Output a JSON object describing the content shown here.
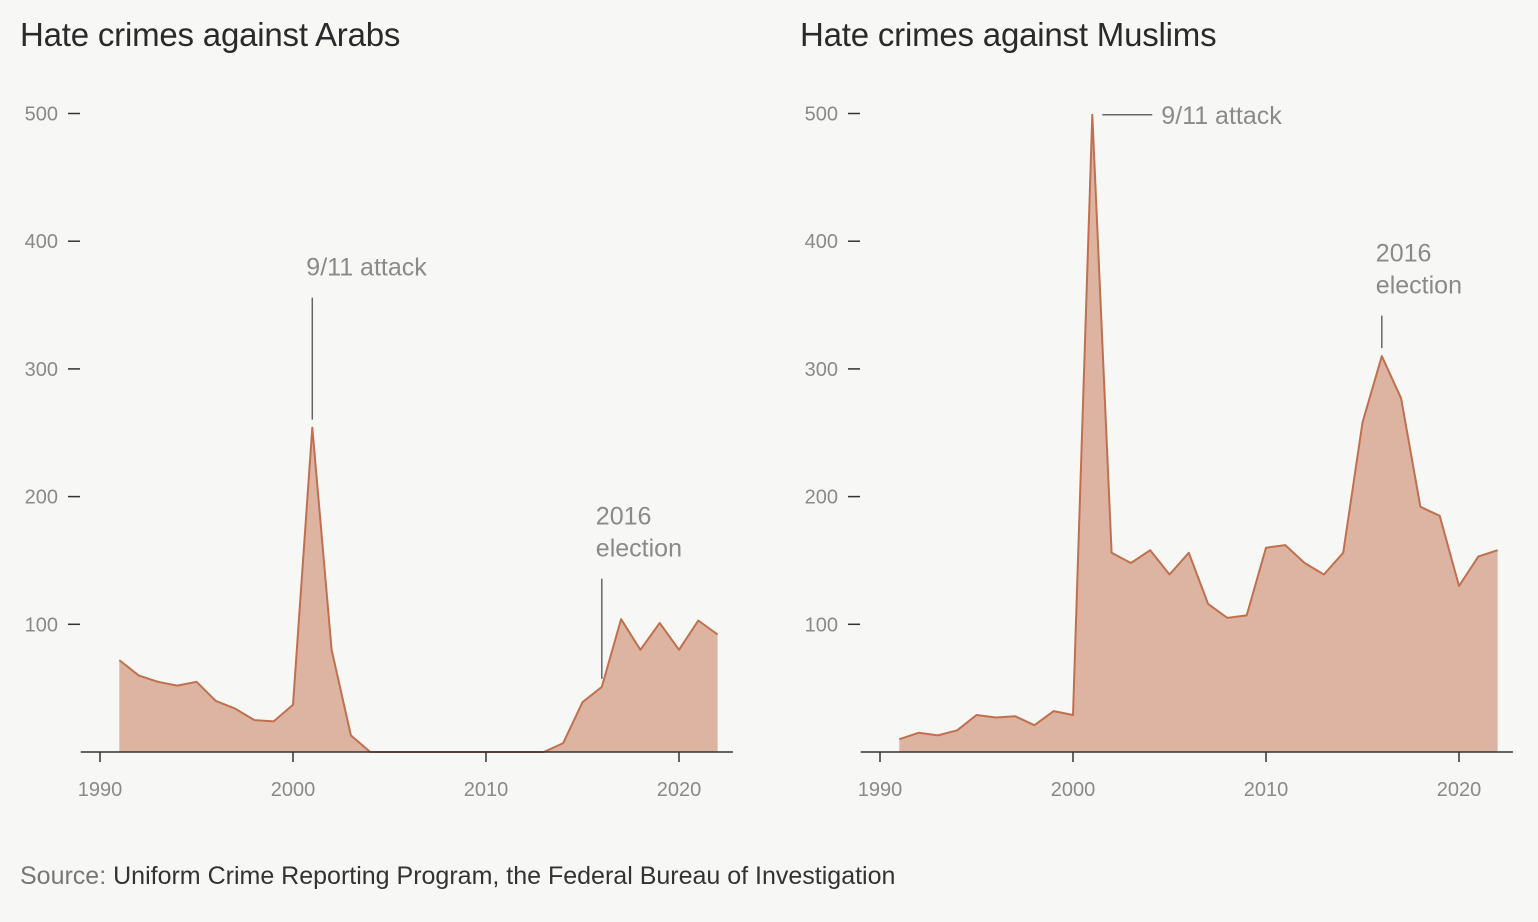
{
  "source": {
    "label": "Source:",
    "text": " Uniform Crime Reporting Program, the Federal Bureau of Investigation"
  },
  "colors": {
    "fill": "#ddb4a1",
    "stroke": "#c0704f",
    "axis": "#333333",
    "tick_text": "#8a8a8a"
  },
  "chart_data": [
    {
      "type": "area",
      "title": "Hate crimes against Arabs",
      "x": [
        1991,
        1992,
        1993,
        1994,
        1995,
        1996,
        1997,
        1998,
        1999,
        2000,
        2001,
        2002,
        2003,
        2004,
        2005,
        2006,
        2007,
        2008,
        2009,
        2010,
        2011,
        2012,
        2013,
        2014,
        2015,
        2016,
        2017,
        2018,
        2019,
        2020,
        2021,
        2022
      ],
      "values": [
        72,
        60,
        55,
        52,
        55,
        40,
        34,
        25,
        24,
        37,
        254,
        80,
        13,
        0,
        0,
        0,
        0,
        0,
        0,
        0,
        0,
        0,
        0,
        7,
        39,
        51,
        104,
        80,
        101,
        80,
        103,
        92
      ],
      "xlim": [
        1989,
        2023
      ],
      "ylim": [
        0,
        500
      ],
      "xticks": [
        "1990",
        "2000",
        "2010",
        "2020"
      ],
      "yticks": [
        "100",
        "200",
        "300",
        "400",
        "500"
      ],
      "annotations": [
        {
          "x": 2001,
          "lines": [
            "9/11 attack"
          ]
        },
        {
          "x": 2016,
          "lines": [
            "2016",
            "election"
          ]
        }
      ]
    },
    {
      "type": "area",
      "title": "Hate crimes against Muslims",
      "x": [
        1991,
        1992,
        1993,
        1994,
        1995,
        1996,
        1997,
        1998,
        1999,
        2000,
        2001,
        2002,
        2003,
        2004,
        2005,
        2006,
        2007,
        2008,
        2009,
        2010,
        2011,
        2012,
        2013,
        2014,
        2015,
        2016,
        2017,
        2018,
        2019,
        2020,
        2021,
        2022
      ],
      "values": [
        10,
        15,
        13,
        17,
        29,
        27,
        28,
        21,
        32,
        29,
        499,
        156,
        148,
        158,
        139,
        156,
        116,
        105,
        107,
        160,
        162,
        148,
        139,
        156,
        258,
        310,
        277,
        192,
        185,
        130,
        153,
        158
      ],
      "xlim": [
        1989,
        2023
      ],
      "ylim": [
        0,
        500
      ],
      "xticks": [
        "1990",
        "2000",
        "2010",
        "2020"
      ],
      "yticks": [
        "100",
        "200",
        "300",
        "400",
        "500"
      ],
      "annotations": [
        {
          "x": 2001,
          "lines": [
            "9/11 attack"
          ]
        },
        {
          "x": 2016,
          "lines": [
            "2016",
            "election"
          ]
        }
      ]
    }
  ]
}
